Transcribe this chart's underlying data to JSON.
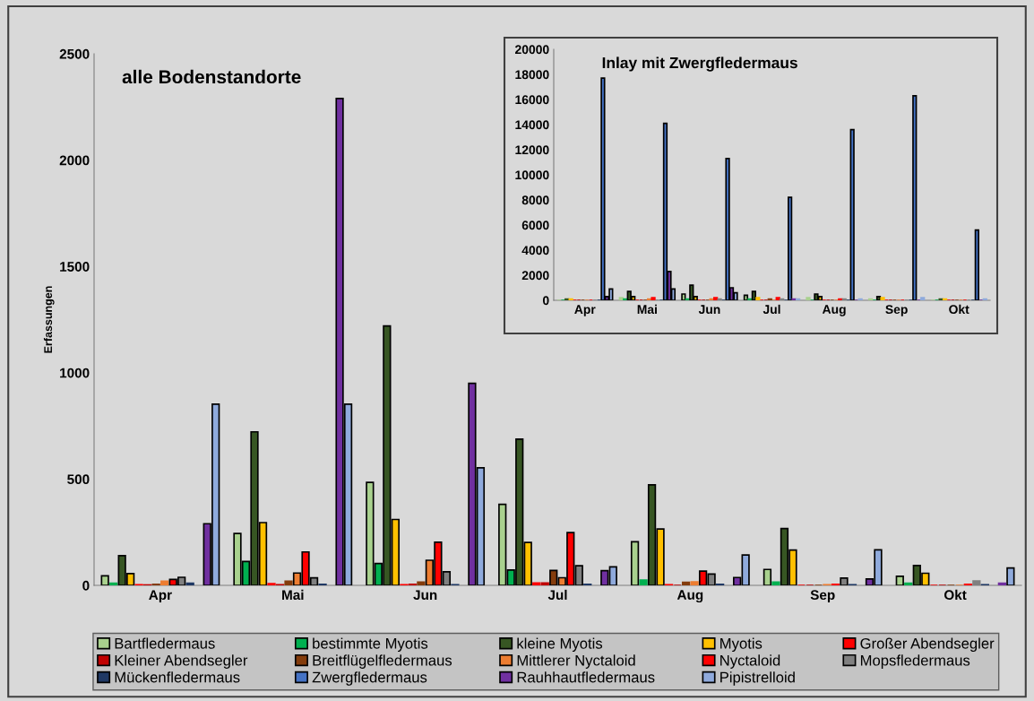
{
  "chart_data": [
    {
      "type": "bar",
      "title": "alle Bodenstandorte",
      "ylabel": "Erfassungen",
      "categories": [
        "Apr",
        "Mai",
        "Jun",
        "Jul",
        "Aug",
        "Sep",
        "Okt"
      ],
      "ylim": [
        0,
        2500
      ],
      "yticks": [
        0,
        500,
        1000,
        1500,
        2000,
        2500
      ],
      "grid": false,
      "legend": "bottom",
      "series": [
        {
          "name": "Bartfledermaus",
          "color": "#a9d18e",
          "values": [
            45,
            244,
            484,
            381,
            205,
            75,
            43
          ]
        },
        {
          "name": "bestimmte Myotis",
          "color": "#00b050",
          "values": [
            10,
            112,
            103,
            72,
            25,
            15,
            10
          ]
        },
        {
          "name": "kleine Myotis",
          "color": "#375623",
          "values": [
            140,
            722,
            1220,
            688,
            473,
            267,
            93
          ]
        },
        {
          "name": "Myotis",
          "color": "#ffc000",
          "values": [
            55,
            295,
            310,
            202,
            265,
            166,
            57
          ]
        },
        {
          "name": "Großer Abendsegler",
          "color": "#ff0000",
          "values": [
            3,
            8,
            3,
            11,
            3,
            0,
            0
          ]
        },
        {
          "name": "Kleiner Abendsegler",
          "color": "#c00000",
          "values": [
            2,
            3,
            5,
            11,
            0,
            0,
            0
          ]
        },
        {
          "name": "Breitflügelfledermaus",
          "color": "#843c0c",
          "values": [
            5,
            20,
            15,
            70,
            14,
            0,
            0
          ]
        },
        {
          "name": "Mittlerer Nyctaloid",
          "color": "#ed7d31",
          "values": [
            20,
            58,
            118,
            36,
            17,
            3,
            0
          ]
        },
        {
          "name": "Nyctaloid",
          "color": "#ff0000",
          "values": [
            28,
            157,
            203,
            248,
            67,
            5,
            5
          ]
        },
        {
          "name": "Mopsfledermaus",
          "color": "#808080",
          "values": [
            38,
            35,
            64,
            92,
            53,
            34,
            21
          ]
        },
        {
          "name": "Mückenfledermaus",
          "color": "#1f3864",
          "values": [
            10,
            5,
            3,
            5,
            5,
            3,
            3
          ]
        },
        {
          "name": "Zwergfledermaus",
          "color": "#4472c4",
          "values": [
            null,
            null,
            null,
            null,
            null,
            null,
            null
          ]
        },
        {
          "name": "Rauhhautfledermaus",
          "color": "#7030a0",
          "values": [
            290,
            2290,
            950,
            69,
            37,
            30,
            10
          ]
        },
        {
          "name": "Pipistrelloid",
          "color": "#8faadc",
          "values": [
            852,
            852,
            553,
            87,
            143,
            167,
            82
          ]
        }
      ]
    },
    {
      "type": "bar",
      "title": "Inlay mit Zwergfledermaus",
      "categories": [
        "Apr",
        "Mai",
        "Jun",
        "Jul",
        "Aug",
        "Sep",
        "Okt"
      ],
      "ylim": [
        0,
        20000
      ],
      "yticks": [
        0,
        2000,
        4000,
        6000,
        8000,
        10000,
        12000,
        14000,
        16000,
        18000,
        20000
      ],
      "grid": false,
      "series": [
        {
          "color": "#a9d18e",
          "values": [
            0,
            200,
            500,
            400,
            200,
            100,
            0
          ]
        },
        {
          "color": "#00b050",
          "values": [
            0,
            100,
            100,
            100,
            0,
            0,
            0
          ]
        },
        {
          "color": "#375623",
          "values": [
            100,
            700,
            1200,
            700,
            500,
            300,
            100
          ]
        },
        {
          "color": "#ffc000",
          "values": [
            100,
            300,
            300,
            200,
            300,
            200,
            100
          ]
        },
        {
          "color": "#ff0000",
          "values": [
            0,
            0,
            0,
            0,
            0,
            0,
            0
          ]
        },
        {
          "color": "#c00000",
          "values": [
            0,
            0,
            0,
            0,
            0,
            0,
            0
          ]
        },
        {
          "color": "#843c0c",
          "values": [
            0,
            0,
            0,
            100,
            0,
            0,
            0
          ]
        },
        {
          "color": "#ed7d31",
          "values": [
            0,
            100,
            100,
            0,
            0,
            0,
            0
          ]
        },
        {
          "color": "#ff0000",
          "values": [
            0,
            200,
            200,
            200,
            100,
            0,
            0
          ]
        },
        {
          "color": "#808080",
          "values": [
            0,
            0,
            100,
            100,
            100,
            0,
            0
          ]
        },
        {
          "color": "#1f3864",
          "values": [
            0,
            0,
            0,
            0,
            0,
            0,
            0
          ]
        },
        {
          "color": "#4472c4",
          "values": [
            17700,
            14100,
            11300,
            8200,
            13600,
            16300,
            5600
          ]
        },
        {
          "color": "#7030a0",
          "values": [
            300,
            2300,
            1000,
            100,
            0,
            0,
            0
          ]
        },
        {
          "color": "#8faadc",
          "values": [
            900,
            900,
            600,
            100,
            100,
            200,
            100
          ]
        }
      ]
    }
  ]
}
